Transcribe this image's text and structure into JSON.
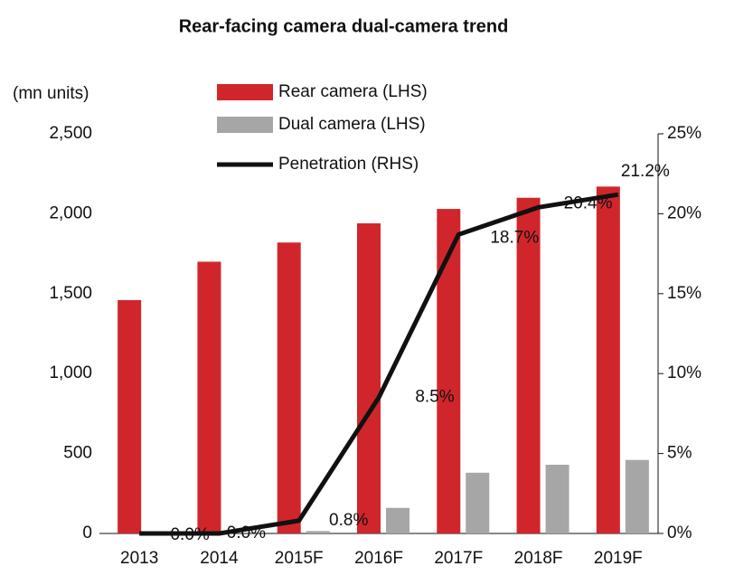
{
  "chart_data": {
    "type": "bar_line",
    "title": "Rear-facing camera dual-camera trend",
    "y_label": "(mn units)",
    "categories": [
      "2013",
      "2014",
      "2015F",
      "2016F",
      "2017F",
      "2018F",
      "2019F"
    ],
    "series": [
      {
        "name": "Rear camera (LHS)",
        "color": "#d0262b",
        "type": "bar",
        "values": [
          1460,
          1700,
          1820,
          1940,
          2030,
          2100,
          2170
        ]
      },
      {
        "name": "Dual camera (LHS)",
        "color": "#a6a6a6",
        "type": "bar",
        "values": [
          0,
          0,
          15,
          160,
          380,
          430,
          460
        ]
      },
      {
        "name": "Penetration (RHS)",
        "color": "#111111",
        "type": "line",
        "axis": "y2",
        "values": [
          0.0,
          0.0,
          0.8,
          8.5,
          18.7,
          20.4,
          21.2
        ],
        "value_labels": [
          "0.0%",
          "0.0%",
          "0.8%",
          "8.5%",
          "18.7%",
          "20.4%",
          "21.2%"
        ]
      }
    ],
    "ylim": [
      0,
      2500
    ],
    "yticks": [
      {
        "value": 0,
        "label": "0"
      },
      {
        "value": 500,
        "label": "500"
      },
      {
        "value": 1000,
        "label": "1,000"
      },
      {
        "value": 1500,
        "label": "1,500"
      },
      {
        "value": 2000,
        "label": "2,000"
      },
      {
        "value": 2500,
        "label": "2,500"
      }
    ],
    "y2lim": [
      0,
      25
    ],
    "y2ticks": [
      {
        "value": 0,
        "label": "0%"
      },
      {
        "value": 5,
        "label": "5%"
      },
      {
        "value": 10,
        "label": "10%"
      },
      {
        "value": 15,
        "label": "15%"
      },
      {
        "value": 20,
        "label": "20%"
      },
      {
        "value": 25,
        "label": "25%"
      }
    ],
    "legend": "top"
  }
}
